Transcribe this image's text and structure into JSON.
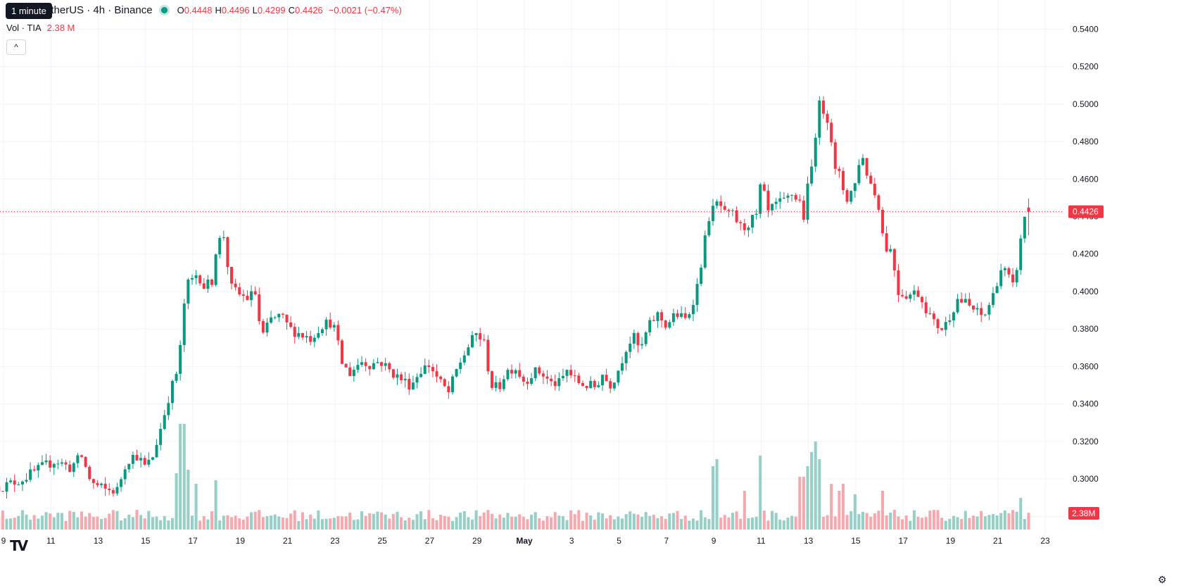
{
  "header": {
    "symbol": "TIATetherUS · 4h · Binance",
    "symbol_visible": "etherUS · 4h · Binance",
    "tooltip": "1 minute",
    "ohlc": [
      {
        "key": "O",
        "value": "0.4448"
      },
      {
        "key": "H",
        "value": "0.4496"
      },
      {
        "key": "L",
        "value": "0.4299"
      },
      {
        "key": "C",
        "value": "0.4426"
      }
    ],
    "change": "−0.0021 (−0.47%)",
    "volume_label": "Vol · TIA",
    "volume_value": "2.38 M",
    "collapse_glyph": "^"
  },
  "colors": {
    "up": "#089981",
    "down": "#f23645",
    "up_volume": "#95cfc5",
    "down_volume": "#f7a8ae",
    "grid": "#f0f3fa",
    "text": "#131722",
    "price_line": "#f23645"
  },
  "icons": {
    "logo": "tradingview-logo-icon",
    "settings": "gear-icon",
    "collapse": "chevron-up-icon",
    "status": "market-status-dot-icon"
  },
  "chart_data": {
    "type": "candlestick",
    "timeframe": "4h",
    "y_axis": {
      "ticks": [
        "0.5400",
        "0.5200",
        "0.5000",
        "0.4800",
        "0.4600",
        "0.4400",
        "0.4200",
        "0.4000",
        "0.3800",
        "0.3600",
        "0.3400",
        "0.3200",
        "0.3000",
        "0.2800"
      ],
      "range": [
        0.27,
        0.545
      ]
    },
    "x_axis": {
      "ticks": [
        {
          "label": "9",
          "day": 9
        },
        {
          "label": "11",
          "day": 11
        },
        {
          "label": "13",
          "day": 13
        },
        {
          "label": "15",
          "day": 15
        },
        {
          "label": "17",
          "day": 17
        },
        {
          "label": "19",
          "day": 19
        },
        {
          "label": "21",
          "day": 21
        },
        {
          "label": "23",
          "day": 23
        },
        {
          "label": "25",
          "day": 25
        },
        {
          "label": "27",
          "day": 27
        },
        {
          "label": "29",
          "day": 29
        },
        {
          "label": "May",
          "day": 31
        },
        {
          "label": "3",
          "day": 33
        },
        {
          "label": "5",
          "day": 35
        },
        {
          "label": "7",
          "day": 37
        },
        {
          "label": "9",
          "day": 39
        },
        {
          "label": "11",
          "day": 41
        },
        {
          "label": "13",
          "day": 43
        },
        {
          "label": "15",
          "day": 45
        },
        {
          "label": "17",
          "day": 47
        },
        {
          "label": "19",
          "day": 49
        },
        {
          "label": "21",
          "day": 51
        },
        {
          "label": "23",
          "day": 53
        }
      ]
    },
    "last_price": {
      "value": 0.4426,
      "label": "0.4426"
    },
    "last_volume_label": "2.38M",
    "volume_scale_max_m": 19,
    "anchors": [
      [
        9.0,
        0.296
      ],
      [
        9.8,
        0.3
      ],
      [
        10.6,
        0.306
      ],
      [
        11.2,
        0.31
      ],
      [
        11.8,
        0.306
      ],
      [
        12.3,
        0.312
      ],
      [
        12.7,
        0.298
      ],
      [
        13.3,
        0.294
      ],
      [
        13.8,
        0.294
      ],
      [
        14.2,
        0.31
      ],
      [
        14.6,
        0.313
      ],
      [
        15.0,
        0.306
      ],
      [
        15.3,
        0.312
      ],
      [
        15.7,
        0.33
      ],
      [
        16.0,
        0.345
      ],
      [
        16.4,
        0.36
      ],
      [
        16.7,
        0.403
      ],
      [
        16.9,
        0.405
      ],
      [
        17.2,
        0.41
      ],
      [
        17.5,
        0.402
      ],
      [
        17.8,
        0.406
      ],
      [
        18.0,
        0.425
      ],
      [
        18.3,
        0.43
      ],
      [
        18.6,
        0.402
      ],
      [
        19.0,
        0.398
      ],
      [
        19.4,
        0.396
      ],
      [
        19.6,
        0.402
      ],
      [
        19.9,
        0.375
      ],
      [
        20.3,
        0.385
      ],
      [
        20.7,
        0.387
      ],
      [
        21.1,
        0.38
      ],
      [
        21.6,
        0.377
      ],
      [
        22.0,
        0.375
      ],
      [
        22.4,
        0.382
      ],
      [
        22.9,
        0.384
      ],
      [
        23.3,
        0.362
      ],
      [
        23.6,
        0.356
      ],
      [
        24.1,
        0.363
      ],
      [
        24.5,
        0.361
      ],
      [
        24.9,
        0.363
      ],
      [
        25.3,
        0.358
      ],
      [
        25.7,
        0.354
      ],
      [
        26.2,
        0.35
      ],
      [
        26.6,
        0.358
      ],
      [
        27.0,
        0.361
      ],
      [
        27.4,
        0.352
      ],
      [
        27.8,
        0.346
      ],
      [
        28.2,
        0.36
      ],
      [
        28.6,
        0.37
      ],
      [
        29.0,
        0.378
      ],
      [
        29.3,
        0.372
      ],
      [
        29.6,
        0.35
      ],
      [
        29.9,
        0.348
      ],
      [
        30.2,
        0.357
      ],
      [
        30.6,
        0.36
      ],
      [
        31.0,
        0.352
      ],
      [
        31.4,
        0.357
      ],
      [
        31.7,
        0.357
      ],
      [
        32.1,
        0.351
      ],
      [
        32.5,
        0.351
      ],
      [
        32.8,
        0.358
      ],
      [
        33.2,
        0.352
      ],
      [
        33.6,
        0.35
      ],
      [
        34.0,
        0.349
      ],
      [
        34.3,
        0.356
      ],
      [
        34.6,
        0.35
      ],
      [
        34.9,
        0.356
      ],
      [
        35.3,
        0.37
      ],
      [
        35.6,
        0.376
      ],
      [
        35.9,
        0.368
      ],
      [
        36.2,
        0.38
      ],
      [
        36.6,
        0.388
      ],
      [
        37.0,
        0.382
      ],
      [
        37.4,
        0.388
      ],
      [
        37.8,
        0.385
      ],
      [
        38.0,
        0.39
      ],
      [
        38.3,
        0.403
      ],
      [
        38.6,
        0.425
      ],
      [
        38.8,
        0.44
      ],
      [
        39.2,
        0.448
      ],
      [
        39.5,
        0.44
      ],
      [
        39.8,
        0.441
      ],
      [
        40.2,
        0.433
      ],
      [
        40.5,
        0.437
      ],
      [
        40.8,
        0.44
      ],
      [
        41.0,
        0.458
      ],
      [
        41.3,
        0.442
      ],
      [
        41.6,
        0.446
      ],
      [
        42.0,
        0.448
      ],
      [
        42.3,
        0.452
      ],
      [
        42.7,
        0.447
      ],
      [
        42.8,
        0.44
      ],
      [
        43.0,
        0.458
      ],
      [
        43.2,
        0.47
      ],
      [
        43.4,
        0.5
      ],
      [
        43.7,
        0.496
      ],
      [
        43.9,
        0.49
      ],
      [
        44.1,
        0.464
      ],
      [
        44.3,
        0.462
      ],
      [
        44.6,
        0.449
      ],
      [
        45.0,
        0.458
      ],
      [
        45.2,
        0.475
      ],
      [
        45.5,
        0.462
      ],
      [
        45.8,
        0.452
      ],
      [
        46.0,
        0.445
      ],
      [
        46.2,
        0.424
      ],
      [
        46.5,
        0.422
      ],
      [
        46.8,
        0.4
      ],
      [
        47.2,
        0.398
      ],
      [
        47.6,
        0.4
      ],
      [
        47.9,
        0.393
      ],
      [
        48.3,
        0.383
      ],
      [
        48.7,
        0.38
      ],
      [
        49.0,
        0.388
      ],
      [
        49.3,
        0.396
      ],
      [
        49.6,
        0.394
      ],
      [
        50.0,
        0.39
      ],
      [
        50.4,
        0.386
      ],
      [
        50.8,
        0.398
      ],
      [
        51.1,
        0.412
      ],
      [
        51.4,
        0.41
      ],
      [
        51.6,
        0.4
      ],
      [
        51.9,
        0.42
      ],
      [
        52.1,
        0.44
      ],
      [
        52.3,
        0.4426
      ]
    ],
    "volume_spikes": [
      [
        16.3,
        8
      ],
      [
        16.55,
        15
      ],
      [
        16.8,
        8.5
      ],
      [
        17.1,
        6.5
      ],
      [
        18.0,
        7
      ],
      [
        38.9,
        9
      ],
      [
        39.1,
        10
      ],
      [
        40.3,
        5.5
      ],
      [
        41.0,
        10.5
      ],
      [
        42.7,
        7.5
      ],
      [
        42.9,
        9
      ],
      [
        43.1,
        11
      ],
      [
        43.3,
        12.5
      ],
      [
        43.5,
        10
      ],
      [
        44.0,
        6.5
      ],
      [
        44.3,
        5.5
      ],
      [
        44.5,
        6.5
      ],
      [
        44.9,
        5
      ],
      [
        46.1,
        5.5
      ],
      [
        52.0,
        4.5
      ]
    ]
  }
}
